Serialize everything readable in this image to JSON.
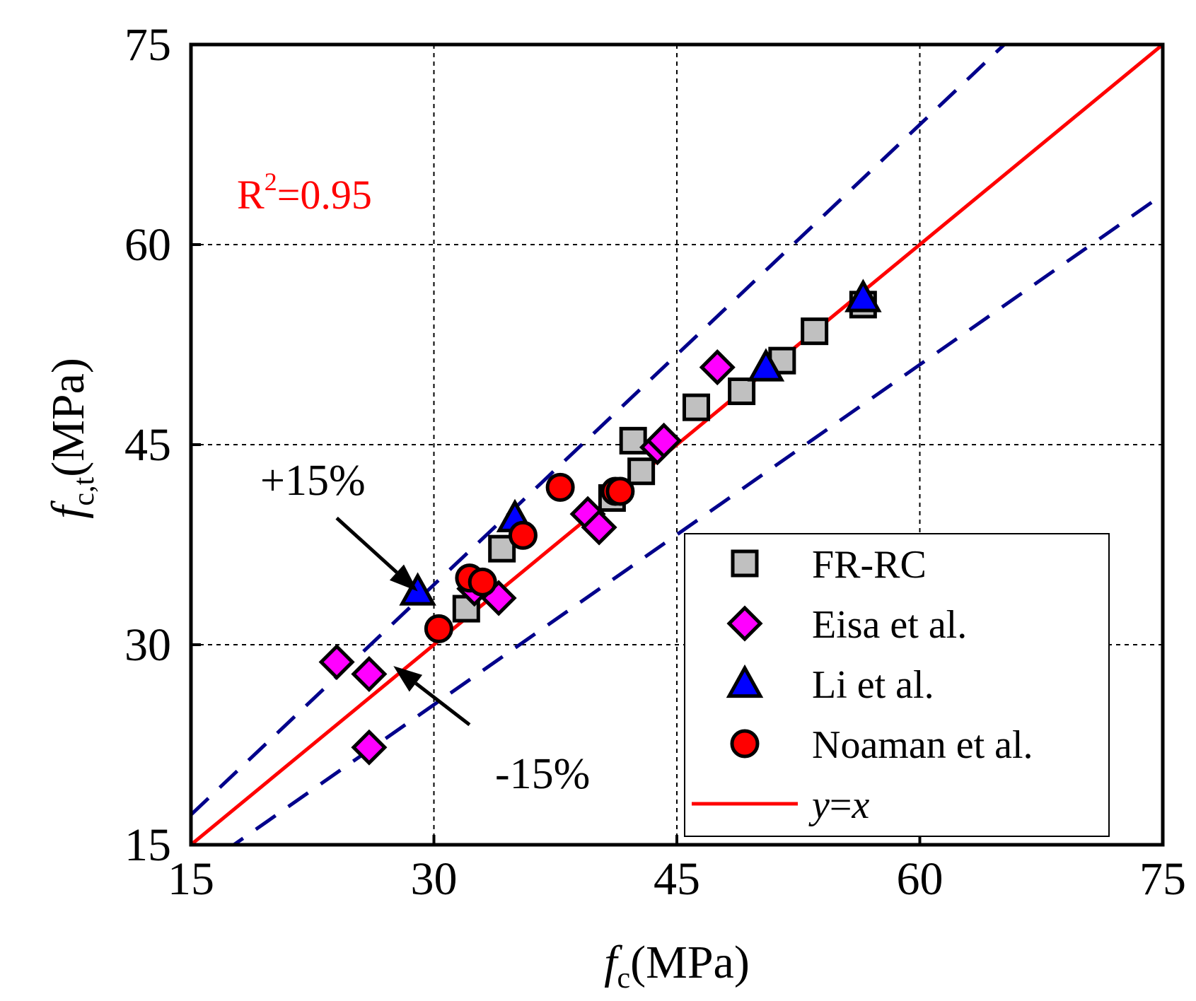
{
  "chart_data": {
    "type": "scatter",
    "x_label": {
      "symbol": "f",
      "sub": "c",
      "unit": "(MPa)"
    },
    "y_label": {
      "symbol": "f",
      "sub": "c,t",
      "unit": "(MPa)"
    },
    "xlim": [
      15,
      75
    ],
    "ylim": [
      15,
      75
    ],
    "x_ticks": [
      15,
      30,
      45,
      60,
      75
    ],
    "y_ticks": [
      15,
      30,
      45,
      60,
      75
    ],
    "grid_lines": [
      30,
      45,
      60
    ],
    "r2": {
      "base": "R",
      "sup": "2",
      "rest": "=0.95",
      "color": "#ff0000"
    },
    "annotations": {
      "plus": {
        "text": "+15%",
        "tip": [
          29.0,
          34.0
        ],
        "tail": [
          24.0,
          39.5
        ]
      },
      "minus": {
        "text": "-15%",
        "tip": [
          27.5,
          28.4
        ],
        "tail": [
          32.2,
          24.0
        ]
      }
    },
    "lines": [
      {
        "name": "y=x",
        "slope": 1.0,
        "color": "#ff0000",
        "style": "solid"
      },
      {
        "name": "+15% bound",
        "slope": 1.15,
        "color": "#00008b",
        "style": "dashed"
      },
      {
        "name": "-15% bound",
        "slope": 0.85,
        "color": "#00008b",
        "style": "dashed"
      }
    ],
    "series": [
      {
        "name": "FR-RC",
        "marker": "square",
        "color": "#c0c0c0",
        "points": [
          [
            32.0,
            32.7
          ],
          [
            34.2,
            37.2
          ],
          [
            41.0,
            41.0
          ],
          [
            42.3,
            45.3
          ],
          [
            42.8,
            43.0
          ],
          [
            46.2,
            47.8
          ],
          [
            49.0,
            49.0
          ],
          [
            51.5,
            51.3
          ],
          [
            53.5,
            53.5
          ],
          [
            56.5,
            55.5
          ]
        ]
      },
      {
        "name": "Eisa et al.",
        "marker": "diamond",
        "color": "#ff00ff",
        "points": [
          [
            24.0,
            28.7
          ],
          [
            26.0,
            27.8
          ],
          [
            26.0,
            22.3
          ],
          [
            32.5,
            34.2
          ],
          [
            34.0,
            33.5
          ],
          [
            39.5,
            39.8
          ],
          [
            40.2,
            38.8
          ],
          [
            43.8,
            44.8
          ],
          [
            44.2,
            45.3
          ],
          [
            47.5,
            50.8
          ]
        ]
      },
      {
        "name": "Li et al.",
        "marker": "triangle",
        "color": "#0000ff",
        "points": [
          [
            29.0,
            34.0
          ],
          [
            35.0,
            39.5
          ],
          [
            50.5,
            50.8
          ],
          [
            56.5,
            56.0
          ]
        ]
      },
      {
        "name": "Noaman et al.",
        "marker": "circle",
        "color": "#ff0000",
        "points": [
          [
            30.3,
            31.2
          ],
          [
            32.2,
            35.0
          ],
          [
            33.0,
            34.7
          ],
          [
            35.5,
            38.2
          ],
          [
            37.8,
            41.8
          ],
          [
            41.2,
            41.5
          ],
          [
            41.5,
            41.5
          ]
        ]
      }
    ],
    "legend": {
      "position": "bottom-right",
      "entries": [
        {
          "label": "FR-RC",
          "marker": "square",
          "color": "#c0c0c0"
        },
        {
          "label": "Eisa et al.",
          "marker": "diamond",
          "color": "#ff00ff"
        },
        {
          "label": "Li et al.",
          "marker": "triangle",
          "color": "#0000ff"
        },
        {
          "label": "Noaman et al.",
          "marker": "circle",
          "color": "#ff0000"
        },
        {
          "label_y": "y",
          "label_eq": "=",
          "label_x": "x",
          "marker": "line",
          "color": "#ff0000"
        }
      ]
    }
  }
}
